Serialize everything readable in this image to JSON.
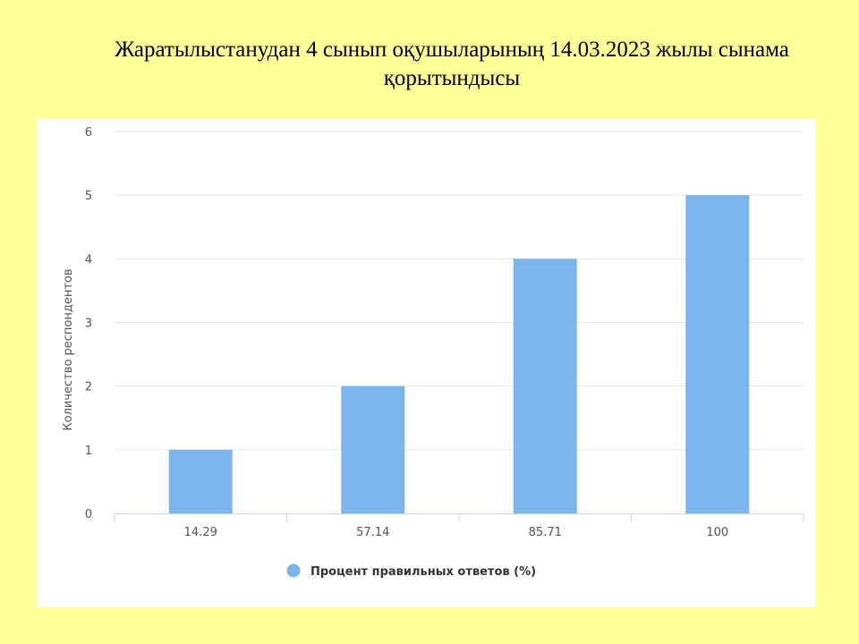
{
  "slide": {
    "title": "Жаратылыстанудан  4 сынып оқушыларының 14.03.2023 жылы сынама қорытындысы"
  },
  "colors": {
    "background": "#ffff99",
    "bar": "#7cb5ec",
    "grid": "#e6e6e6",
    "axis": "#ccd6eb"
  },
  "chart_data": {
    "type": "bar",
    "title": "",
    "categories": [
      "14.29",
      "57.14",
      "85.71",
      "100"
    ],
    "series": [
      {
        "name": "Процент правильных ответов (%)",
        "values": [
          1,
          2,
          4,
          5
        ]
      }
    ],
    "xlabel": "",
    "ylabel": "Количество респондентов",
    "ylim": [
      0,
      6
    ],
    "yticks": [
      "0",
      "1",
      "2",
      "3",
      "4",
      "5",
      "6"
    ],
    "grid": true,
    "legend": "bottom-center"
  }
}
